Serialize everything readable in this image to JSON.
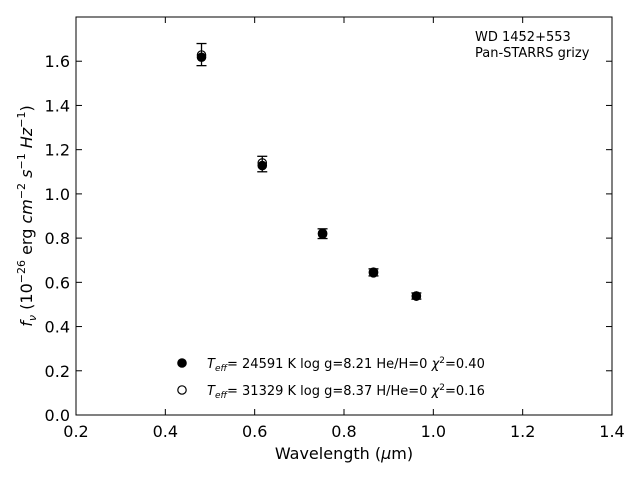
{
  "chart_data": {
    "type": "scatter",
    "title": "",
    "xlabel": "Wavelength (μm)",
    "ylabel": "f_ν (10^-26 erg cm^-2 s^-1 Hz^-1)",
    "xlim": [
      0.2,
      1.4
    ],
    "ylim": [
      0.0,
      1.8
    ],
    "xticks": [
      0.2,
      0.4,
      0.6,
      0.8,
      1.0,
      1.2,
      1.4
    ],
    "yticks": [
      0.0,
      0.2,
      0.4,
      0.6,
      0.8,
      1.0,
      1.2,
      1.4,
      1.6
    ],
    "grid": false,
    "annotation": [
      "WD 1452+553",
      "Pan-STARRS grizy"
    ],
    "observed": {
      "x": [
        0.481,
        0.617,
        0.752,
        0.866,
        0.962
      ],
      "y": [
        1.63,
        1.135,
        0.82,
        0.645,
        0.538
      ],
      "err": [
        0.05,
        0.035,
        0.022,
        0.016,
        0.014
      ]
    },
    "series": [
      {
        "name": "T_eff= 24591 K  log g=8.21  He/H=0  χ²=0.40",
        "marker": "filled",
        "x": [
          0.481,
          0.617,
          0.752,
          0.866,
          0.962
        ],
        "y": [
          1.618,
          1.128,
          0.822,
          0.646,
          0.538
        ]
      },
      {
        "name": "T_eff= 31329 K  log g=8.37  H/He=0  χ²=0.16",
        "marker": "open",
        "x": [
          0.481,
          0.617,
          0.752,
          0.866,
          0.962
        ],
        "y": [
          1.628,
          1.14,
          0.818,
          0.643,
          0.538
        ]
      }
    ],
    "legend_placement": "bottom-center",
    "colors": {
      "marker": "#000000",
      "background": "#ffffff"
    }
  }
}
